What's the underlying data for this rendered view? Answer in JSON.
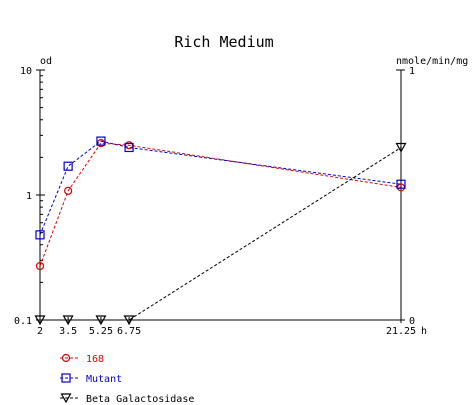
{
  "chart_data": {
    "type": "line",
    "title": "Rich Medium",
    "y_left": {
      "label": "od",
      "scale": "log",
      "range": [
        0.1,
        10
      ],
      "ticks": [
        {
          "value": 0.1,
          "label": "0.1"
        },
        {
          "value": 1,
          "label": "1"
        },
        {
          "value": 10,
          "label": "10"
        }
      ]
    },
    "y_right": {
      "label": "nmole/min/mg",
      "scale": "linear",
      "range": [
        0,
        1
      ],
      "ticks": [
        {
          "value": 0,
          "label": "0"
        },
        {
          "value": 1,
          "label": "1"
        }
      ]
    },
    "x": {
      "unit_label": "h",
      "range": [
        2,
        21.25
      ],
      "ticks": [
        {
          "value": 2,
          "label": "2"
        },
        {
          "value": 3.5,
          "label": "3.5"
        },
        {
          "value": 5.25,
          "label": "5.25"
        },
        {
          "value": 6.75,
          "label": "6.75"
        },
        {
          "value": 21.25,
          "label": "21.25"
        }
      ]
    },
    "series": [
      {
        "name": "168",
        "axis": "left",
        "color": "#dd0000",
        "marker": "circle",
        "x": [
          2,
          3.5,
          5.25,
          6.75,
          21.25
        ],
        "y": [
          0.27,
          1.08,
          2.6,
          2.5,
          1.15
        ]
      },
      {
        "name": "Mutant",
        "axis": "left",
        "color": "#0000cc",
        "marker": "square",
        "x": [
          2,
          3.5,
          5.25,
          6.75,
          21.25
        ],
        "y": [
          0.48,
          1.7,
          2.7,
          2.4,
          1.22
        ]
      },
      {
        "name": "Beta Galactosidase",
        "axis": "right",
        "color": "#000000",
        "marker": "triangle-down",
        "x": [
          2,
          3.5,
          5.25,
          6.75,
          21.25
        ],
        "y": [
          0,
          0,
          0,
          0,
          0.69
        ]
      }
    ],
    "legend": {
      "position": "bottom-left"
    },
    "grid": false
  }
}
